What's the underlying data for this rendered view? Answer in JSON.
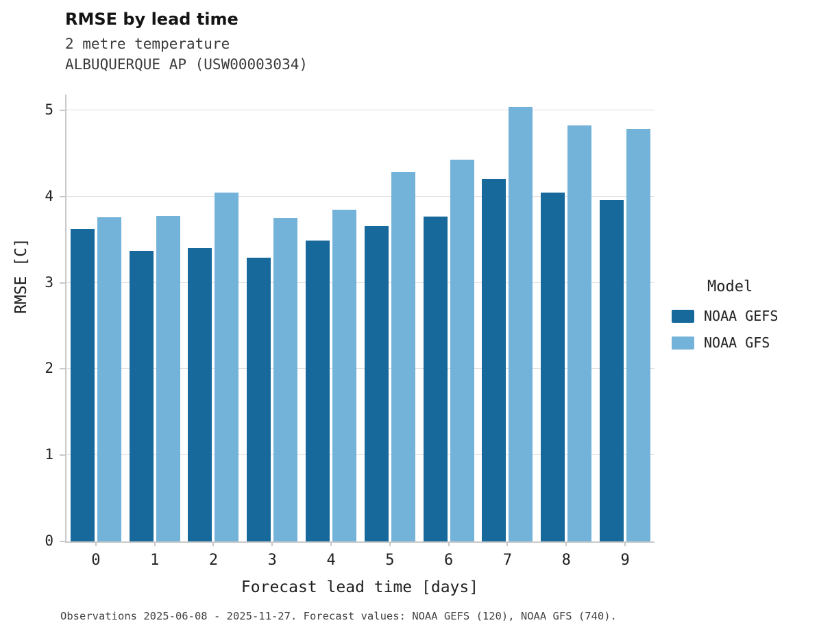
{
  "header": {
    "title": "RMSE by lead time",
    "subtitle1": "2 metre temperature",
    "subtitle2": "ALBUQUERQUE AP (USW00003034)"
  },
  "chart_data": {
    "type": "bar",
    "title": "RMSE by lead time",
    "subtitle": "2 metre temperature — ALBUQUERQUE AP (USW00003034)",
    "categories": [
      "0",
      "1",
      "2",
      "3",
      "4",
      "5",
      "6",
      "7",
      "8",
      "9"
    ],
    "series": [
      {
        "name": "NOAA GEFS",
        "color": "#17699c",
        "values": [
          3.63,
          3.37,
          3.4,
          3.29,
          3.49,
          3.66,
          3.77,
          4.21,
          4.05,
          3.96
        ]
      },
      {
        "name": "NOAA GFS",
        "color": "#74b3d9",
        "values": [
          3.76,
          3.78,
          4.05,
          3.75,
          3.85,
          4.29,
          4.43,
          5.04,
          4.83,
          4.79
        ]
      }
    ],
    "xlabel": "Forecast lead time [days]",
    "ylabel": "RMSE [C]",
    "ylim": [
      0,
      5.2
    ],
    "yticks": [
      0,
      1,
      2,
      3,
      4,
      5
    ],
    "grid": true,
    "legend_title": "Model",
    "legend_position": "right"
  },
  "footer": {
    "note": "Observations 2025-06-08 - 2025-11-27. Forecast values: NOAA GEFS (120), NOAA GFS (740)."
  }
}
